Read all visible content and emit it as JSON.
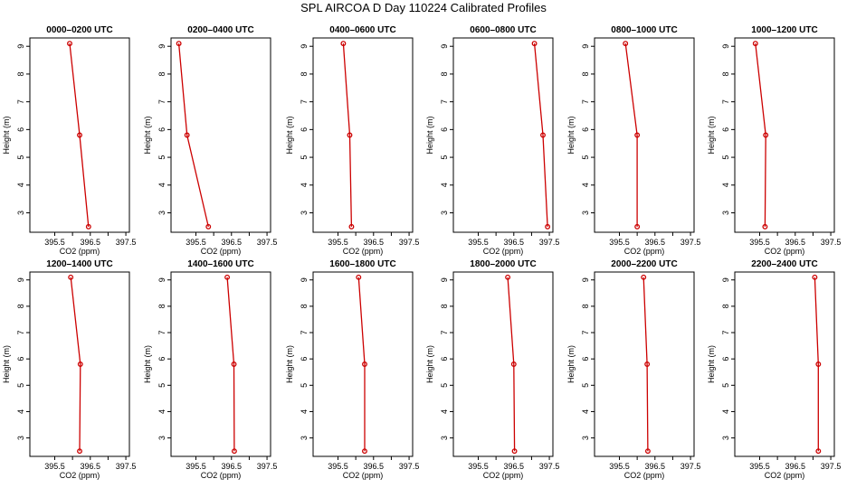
{
  "page_title": "SPL AIRCOA D  Day 110224  Calibrated Profiles",
  "colors": {
    "line": "#cc0000",
    "axis": "#000000"
  },
  "chart_data": [
    {
      "type": "line",
      "title": "0000–0200 UTC",
      "xlabel": "CO2 (ppm)",
      "ylabel": "Height (m)",
      "xlim": [
        394.8,
        397.6
      ],
      "ylim": [
        2.3,
        9.3
      ],
      "xticks": [
        395.5,
        396.5,
        397.5
      ],
      "xticks_unlabeled": [
        396.0,
        397.0
      ],
      "yticks": [
        3,
        4,
        5,
        6,
        7,
        8,
        9
      ],
      "points": [
        {
          "x": 396.45,
          "y": 2.5
        },
        {
          "x": 396.2,
          "y": 5.8
        },
        {
          "x": 395.92,
          "y": 9.1
        }
      ]
    },
    {
      "type": "line",
      "title": "0200–0400 UTC",
      "xlabel": "CO2 (ppm)",
      "ylabel": "Height (m)",
      "xlim": [
        394.8,
        397.6
      ],
      "ylim": [
        2.3,
        9.3
      ],
      "xticks": [
        395.5,
        396.5,
        397.5
      ],
      "xticks_unlabeled": [
        396.0,
        397.0
      ],
      "yticks": [
        3,
        4,
        5,
        6,
        7,
        8,
        9
      ],
      "points": [
        {
          "x": 395.85,
          "y": 2.5
        },
        {
          "x": 395.25,
          "y": 5.8
        },
        {
          "x": 395.02,
          "y": 9.1
        }
      ]
    },
    {
      "type": "line",
      "title": "0400–0600 UTC",
      "xlabel": "CO2 (ppm)",
      "ylabel": "Height (m)",
      "xlim": [
        394.8,
        397.6
      ],
      "ylim": [
        2.3,
        9.3
      ],
      "xticks": [
        395.5,
        396.5,
        397.5
      ],
      "xticks_unlabeled": [
        396.0,
        397.0
      ],
      "yticks": [
        3,
        4,
        5,
        6,
        7,
        8,
        9
      ],
      "points": [
        {
          "x": 395.88,
          "y": 2.5
        },
        {
          "x": 395.83,
          "y": 5.8
        },
        {
          "x": 395.65,
          "y": 9.1
        }
      ]
    },
    {
      "type": "line",
      "title": "0600–0800 UTC",
      "xlabel": "CO2 (ppm)",
      "ylabel": "Height (m)",
      "xlim": [
        394.8,
        397.6
      ],
      "ylim": [
        2.3,
        9.3
      ],
      "xticks": [
        395.5,
        396.5,
        397.5
      ],
      "xticks_unlabeled": [
        396.0,
        397.0
      ],
      "yticks": [
        3,
        4,
        5,
        6,
        7,
        8,
        9
      ],
      "points": [
        {
          "x": 397.45,
          "y": 2.5
        },
        {
          "x": 397.32,
          "y": 5.8
        },
        {
          "x": 397.08,
          "y": 9.1
        }
      ]
    },
    {
      "type": "line",
      "title": "0800–1000 UTC",
      "xlabel": "CO2 (ppm)",
      "ylabel": "Height (m)",
      "xlim": [
        394.8,
        397.6
      ],
      "ylim": [
        2.3,
        9.3
      ],
      "xticks": [
        395.5,
        396.5,
        397.5
      ],
      "xticks_unlabeled": [
        396.0,
        397.0
      ],
      "yticks": [
        3,
        4,
        5,
        6,
        7,
        8,
        9
      ],
      "points": [
        {
          "x": 396.0,
          "y": 2.5
        },
        {
          "x": 396.0,
          "y": 5.8
        },
        {
          "x": 395.67,
          "y": 9.1
        }
      ]
    },
    {
      "type": "line",
      "title": "1000–1200 UTC",
      "xlabel": "CO2 (ppm)",
      "ylabel": "Height (m)",
      "xlim": [
        394.8,
        397.6
      ],
      "ylim": [
        2.3,
        9.3
      ],
      "xticks": [
        395.5,
        396.5,
        397.5
      ],
      "xticks_unlabeled": [
        396.0,
        397.0
      ],
      "yticks": [
        3,
        4,
        5,
        6,
        7,
        8,
        9
      ],
      "points": [
        {
          "x": 395.65,
          "y": 2.5
        },
        {
          "x": 395.67,
          "y": 5.8
        },
        {
          "x": 395.38,
          "y": 9.1
        }
      ]
    },
    {
      "type": "line",
      "title": "1200–1400 UTC",
      "xlabel": "CO2 (ppm)",
      "ylabel": "Height (m)",
      "xlim": [
        394.8,
        397.6
      ],
      "ylim": [
        2.3,
        9.3
      ],
      "xticks": [
        395.5,
        396.5,
        397.5
      ],
      "xticks_unlabeled": [
        396.0,
        397.0
      ],
      "yticks": [
        3,
        4,
        5,
        6,
        7,
        8,
        9
      ],
      "points": [
        {
          "x": 396.2,
          "y": 2.5
        },
        {
          "x": 396.22,
          "y": 5.8
        },
        {
          "x": 395.95,
          "y": 9.1
        }
      ]
    },
    {
      "type": "line",
      "title": "1400–1600 UTC",
      "xlabel": "CO2 (ppm)",
      "ylabel": "Height (m)",
      "xlim": [
        394.8,
        397.6
      ],
      "ylim": [
        2.3,
        9.3
      ],
      "xticks": [
        395.5,
        396.5,
        397.5
      ],
      "xticks_unlabeled": [
        396.0,
        397.0
      ],
      "yticks": [
        3,
        4,
        5,
        6,
        7,
        8,
        9
      ],
      "points": [
        {
          "x": 396.58,
          "y": 2.5
        },
        {
          "x": 396.57,
          "y": 5.8
        },
        {
          "x": 396.38,
          "y": 9.1
        }
      ]
    },
    {
      "type": "line",
      "title": "1600–1800 UTC",
      "xlabel": "CO2 (ppm)",
      "ylabel": "Height (m)",
      "xlim": [
        394.8,
        397.6
      ],
      "ylim": [
        2.3,
        9.3
      ],
      "xticks": [
        395.5,
        396.5,
        397.5
      ],
      "xticks_unlabeled": [
        396.0,
        397.0
      ],
      "yticks": [
        3,
        4,
        5,
        6,
        7,
        8,
        9
      ],
      "points": [
        {
          "x": 396.25,
          "y": 2.5
        },
        {
          "x": 396.25,
          "y": 5.8
        },
        {
          "x": 396.08,
          "y": 9.1
        }
      ]
    },
    {
      "type": "line",
      "title": "1800–2000 UTC",
      "xlabel": "CO2 (ppm)",
      "ylabel": "Height (m)",
      "xlim": [
        394.8,
        397.6
      ],
      "ylim": [
        2.3,
        9.3
      ],
      "xticks": [
        395.5,
        396.5,
        397.5
      ],
      "xticks_unlabeled": [
        396.0,
        397.0
      ],
      "yticks": [
        3,
        4,
        5,
        6,
        7,
        8,
        9
      ],
      "points": [
        {
          "x": 396.52,
          "y": 2.5
        },
        {
          "x": 396.5,
          "y": 5.8
        },
        {
          "x": 396.33,
          "y": 9.1
        }
      ]
    },
    {
      "type": "line",
      "title": "2000–2200 UTC",
      "xlabel": "CO2 (ppm)",
      "ylabel": "Height (m)",
      "xlim": [
        394.8,
        397.6
      ],
      "ylim": [
        2.3,
        9.3
      ],
      "xticks": [
        395.5,
        396.5,
        397.5
      ],
      "xticks_unlabeled": [
        396.0,
        397.0
      ],
      "yticks": [
        3,
        4,
        5,
        6,
        7,
        8,
        9
      ],
      "points": [
        {
          "x": 396.3,
          "y": 2.5
        },
        {
          "x": 396.28,
          "y": 5.8
        },
        {
          "x": 396.18,
          "y": 9.1
        }
      ]
    },
    {
      "type": "line",
      "title": "2200–2400 UTC",
      "xlabel": "CO2 (ppm)",
      "ylabel": "Height (m)",
      "xlim": [
        394.8,
        397.6
      ],
      "ylim": [
        2.3,
        9.3
      ],
      "xticks": [
        395.5,
        396.5,
        397.5
      ],
      "xticks_unlabeled": [
        396.0,
        397.0
      ],
      "yticks": [
        3,
        4,
        5,
        6,
        7,
        8,
        9
      ],
      "points": [
        {
          "x": 397.15,
          "y": 2.5
        },
        {
          "x": 397.15,
          "y": 5.8
        },
        {
          "x": 397.05,
          "y": 9.1
        }
      ]
    }
  ]
}
